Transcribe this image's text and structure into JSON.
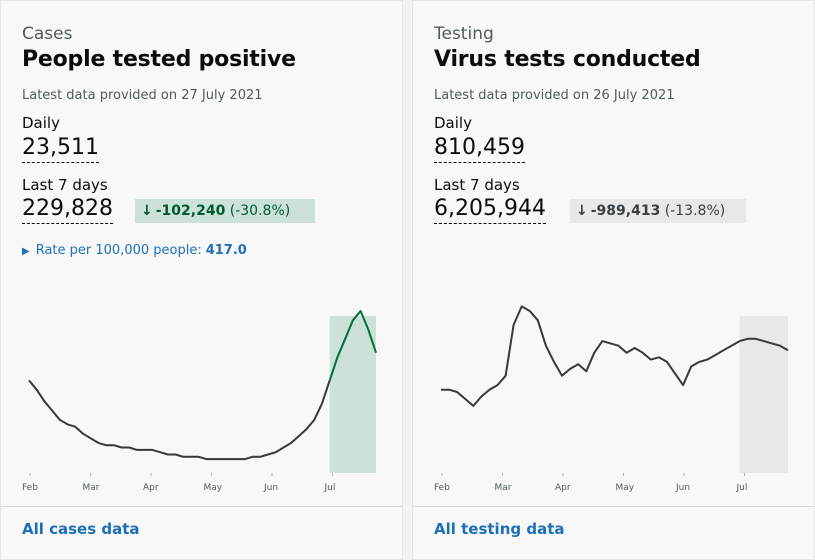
{
  "cards": {
    "cases": {
      "caption": "Cases",
      "title": "People tested positive",
      "updated": "Latest data provided on 27 July 2021",
      "daily_label": "Daily",
      "daily_value": "23,511",
      "week_label": "Last 7 days",
      "week_value": "229,828",
      "change_arrow": "↓",
      "change_value": "-102,240",
      "change_pct": "(-30.8%)",
      "rate_label": "Rate per 100,000 people:",
      "rate_value": "417.0",
      "footer_link": "All cases data",
      "accent_color": "#00703c",
      "highlight_color": "#cce2d8"
    },
    "testing": {
      "caption": "Testing",
      "title": "Virus tests conducted",
      "updated": "Latest data provided on 26 July 2021",
      "daily_label": "Daily",
      "daily_value": "810,459",
      "week_label": "Last 7 days",
      "week_value": "6,205,944",
      "change_arrow": "↓",
      "change_value": "-989,413",
      "change_pct": "(-13.8%)",
      "footer_link": "All testing data",
      "highlight_color": "#e8e8e8"
    }
  },
  "chart_data": [
    {
      "type": "line",
      "x_ticks": [
        "Feb",
        "Mar",
        "Apr",
        "May",
        "Jun",
        "Jul"
      ],
      "ylim": [
        0,
        70
      ],
      "grid": false,
      "series": [
        {
          "values": [
            40,
            36,
            31,
            27,
            23,
            21,
            20,
            17,
            15,
            13,
            12,
            12,
            11,
            11,
            10,
            10,
            10,
            9,
            8,
            8,
            7,
            7,
            7,
            6,
            6,
            6,
            6,
            6,
            6,
            7,
            7,
            8,
            9,
            11,
            13,
            16,
            19,
            23,
            30,
            40,
            50,
            58,
            66,
            70,
            62,
            52
          ]
        }
      ],
      "highlight_last_n": 7
    },
    {
      "type": "line",
      "x_ticks": [
        "Feb",
        "Mar",
        "Apr",
        "May",
        "Jun",
        "Jul"
      ],
      "ylim": [
        0,
        70
      ],
      "grid": false,
      "series": [
        {
          "values": [
            36,
            36,
            35,
            32,
            29,
            33,
            36,
            38,
            42,
            64,
            72,
            70,
            66,
            55,
            48,
            42,
            45,
            47,
            44,
            52,
            57,
            56,
            55,
            52,
            54,
            52,
            49,
            50,
            48,
            43,
            38,
            46,
            48,
            49,
            51,
            53,
            55,
            57,
            58,
            58,
            57,
            56,
            55,
            53
          ]
        }
      ],
      "highlight_last_n": 7
    }
  ]
}
